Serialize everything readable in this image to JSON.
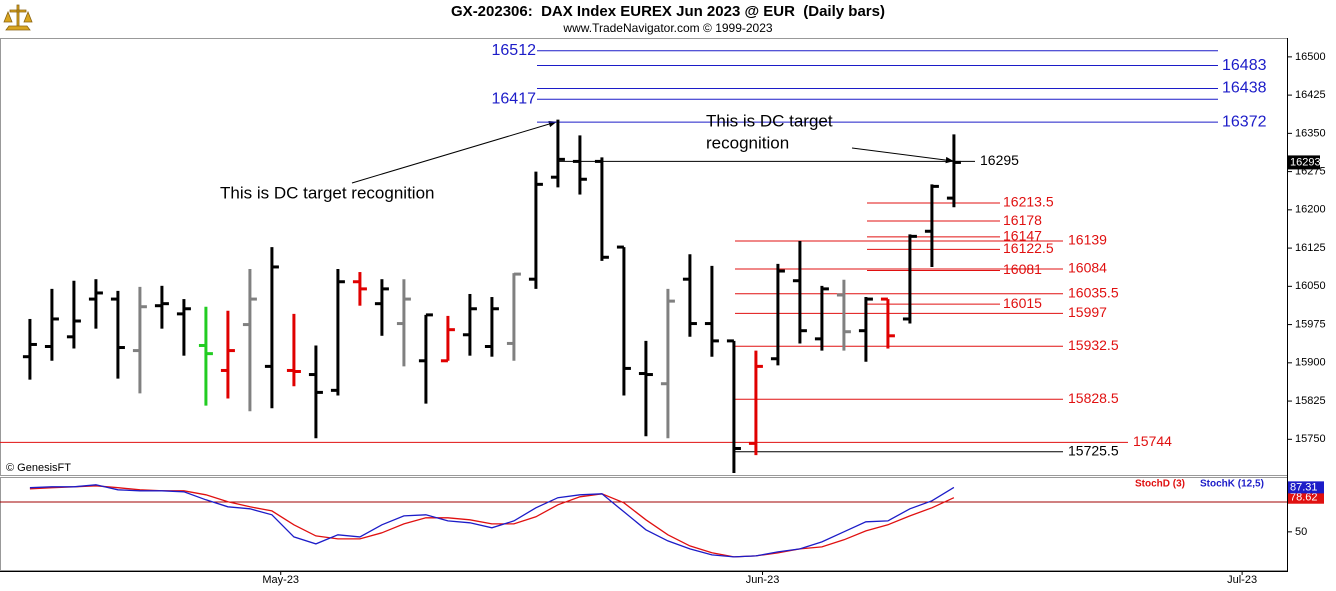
{
  "chart_data": [
    {
      "type": "ohlc",
      "title": "GX-202306:  DAX Index EUREX Jun 2023 @ EUR  (Daily bars)",
      "subtitle": "www.TradeNavigator.com © 1999-2023",
      "watermark": "© GenesisFT",
      "open": [
        15912,
        15932,
        15951,
        16025,
        16025,
        15924,
        16012,
        15996,
        15934,
        15885,
        15975,
        15893,
        15885,
        15877,
        15846,
        16059,
        16016,
        15977,
        15904,
        15904,
        15955,
        15932,
        15938,
        16064,
        16264,
        16295,
        16295,
        16127,
        15879,
        15859,
        16064,
        15977,
        15943,
        15742,
        15908,
        16061,
        15947,
        16033,
        15963,
        16025,
        15986,
        16158,
        16223
      ],
      "high": [
        15986,
        16045,
        16061,
        16064,
        16041,
        16049,
        16051,
        16025,
        16010,
        16002,
        16084,
        16127,
        15996,
        15934,
        16084,
        16078,
        16064,
        16064,
        15994,
        15992,
        16035,
        16029,
        16076,
        16275,
        16377,
        16346,
        16303,
        16127,
        15943,
        16045,
        16113,
        16090,
        15943,
        15924,
        16094,
        16139,
        16051,
        16063,
        16029,
        16025,
        16152,
        16250,
        16348
      ],
      "low": [
        15867,
        15904,
        15928,
        15967,
        15869,
        15840,
        15967,
        15914,
        15816,
        15830,
        15805,
        15811,
        15854,
        15752,
        15836,
        16012,
        15953,
        15893,
        15820,
        15904,
        15914,
        15912,
        15904,
        16045,
        16244,
        16230,
        16100,
        15836,
        15756,
        15752,
        15951,
        15912,
        15684,
        15719,
        15895,
        15938,
        15924,
        15924,
        15902,
        15928,
        15977,
        16088,
        16205
      ],
      "close": [
        15936,
        15986,
        15982,
        16037,
        15930,
        16010,
        16016,
        16006,
        15918,
        15924,
        16025,
        16088,
        15883,
        15842,
        16059,
        16045,
        16045,
        16025,
        15994,
        15965,
        16006,
        16006,
        16074,
        16250,
        16299,
        16260,
        16107,
        15889,
        15877,
        16021,
        15977,
        15943,
        15732,
        15893,
        16080,
        15963,
        16045,
        15961,
        16025,
        15953,
        16148,
        16246,
        16293
      ],
      "colors": [
        "#000000",
        "#000000",
        "#000000",
        "#000000",
        "#000000",
        "#808080",
        "#000000",
        "#000000",
        "#22cc22",
        "#e00000",
        "#808080",
        "#000000",
        "#e00000",
        "#000000",
        "#000000",
        "#e00000",
        "#000000",
        "#808080",
        "#000000",
        "#e00000",
        "#000000",
        "#000000",
        "#808080",
        "#000000",
        "#000000",
        "#000000",
        "#000000",
        "#000000",
        "#000000",
        "#808080",
        "#000000",
        "#000000",
        "#000000",
        "#e00000",
        "#000000",
        "#000000",
        "#000000",
        "#808080",
        "#000000",
        "#e00000",
        "#000000",
        "#000000",
        "#000000"
      ],
      "xlim": [
        -1.36,
        57.14
      ],
      "ylim": [
        15680,
        16537
      ],
      "yticks": [
        15750,
        15825,
        15900,
        15975,
        16050,
        16125,
        16200,
        16275,
        16350,
        16425,
        16500
      ],
      "last_price": 16293,
      "levels": [
        {
          "value": 16512,
          "color": "#1c1cc8"
        },
        {
          "value": 16483,
          "color": "#1c1cc8"
        },
        {
          "value": 16438,
          "color": "#1c1cc8"
        },
        {
          "value": 16417,
          "color": "#1c1cc8"
        },
        {
          "value": 16372,
          "color": "#1c1cc8"
        },
        {
          "value": 16295,
          "color": "#000000"
        },
        {
          "value": 16213.5,
          "color": "#e01010"
        },
        {
          "value": 16178,
          "color": "#e01010"
        },
        {
          "value": 16147,
          "color": "#e01010"
        },
        {
          "value": 16139,
          "color": "#e01010"
        },
        {
          "value": 16122.5,
          "color": "#e01010"
        },
        {
          "value": 16084,
          "color": "#e01010"
        },
        {
          "value": 16081,
          "color": "#e01010"
        },
        {
          "value": 16035.5,
          "color": "#e01010"
        },
        {
          "value": 16015,
          "color": "#e01010"
        },
        {
          "value": 15997,
          "color": "#e01010"
        },
        {
          "value": 15932.5,
          "color": "#e01010"
        },
        {
          "value": 15828.5,
          "color": "#e01010"
        },
        {
          "value": 15744,
          "color": "#e01010"
        },
        {
          "value": 15725.5,
          "color": "#000000"
        }
      ],
      "annotations": [
        {
          "lines": [
            "This is DC target recognition"
          ]
        },
        {
          "lines": [
            "This is DC target",
            "recognition"
          ]
        }
      ]
    },
    {
      "type": "line",
      "series": [
        {
          "name": "StochD (3)",
          "color": "#e01010",
          "values": [
            86.1,
            87.0,
            87.8,
            88.6,
            87.0,
            85.3,
            84.4,
            84.4,
            81.1,
            75.2,
            71.0,
            67.6,
            55.9,
            46.6,
            44.1,
            44.1,
            49.2,
            56.7,
            61.8,
            61.8,
            60.1,
            56.7,
            56.7,
            62.6,
            72.7,
            79.4,
            81.9,
            74.4,
            60.1,
            47.5,
            38.2,
            32.4,
            29.0,
            29.8,
            32.4,
            35.7,
            37.4,
            43.3,
            50.8,
            55.9,
            63.4,
            70.2,
            78.62
          ]
        },
        {
          "name": "StochK (12,5)",
          "color": "#1c1cc8",
          "values": [
            87.0,
            87.8,
            87.8,
            89.5,
            85.3,
            84.4,
            84.4,
            83.6,
            76.9,
            71.0,
            69.3,
            64.3,
            45.8,
            39.9,
            47.5,
            45.8,
            55.9,
            63.4,
            64.3,
            59.2,
            57.6,
            53.4,
            59.2,
            70.2,
            78.6,
            81.1,
            81.9,
            66.8,
            51.7,
            42.4,
            35.7,
            30.7,
            29.0,
            29.8,
            33.2,
            35.7,
            41.6,
            50,
            58.4,
            59.2,
            69.3,
            76.0,
            87.31
          ]
        }
      ],
      "xlim": [
        -1.36,
        57.14
      ],
      "xticks": [
        {
          "value": 11.4,
          "label": "May-23"
        },
        {
          "value": 33.3,
          "label": "Jun-23"
        },
        {
          "value": 55.1,
          "label": "Jul-23"
        }
      ],
      "ylim": [
        18,
        96
      ],
      "yticks": [
        50
      ],
      "reference_line": 75
    }
  ]
}
